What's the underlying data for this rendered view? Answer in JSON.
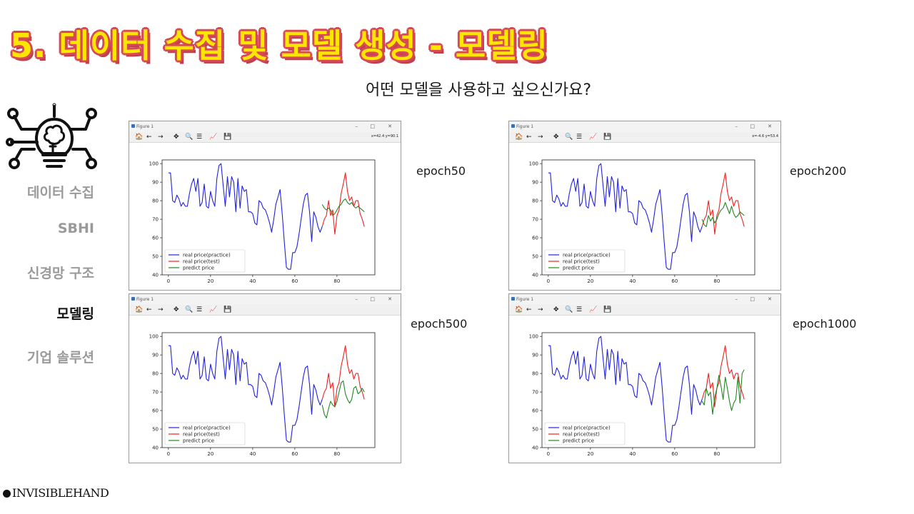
{
  "slide": {
    "title": "5. 데이터 수집 및 모델 생성 - 모델링",
    "subtitle": "어떤 모델을 사용하고 싶으신가요?",
    "brand": "INVISIBLEHAND"
  },
  "nav": {
    "items": [
      {
        "label": "데이터 수집",
        "active": false
      },
      {
        "label": "SBHI",
        "active": false
      },
      {
        "label": "신경망 구조",
        "active": false
      },
      {
        "label": "모델링",
        "active": true
      },
      {
        "label": "기업 솔루션",
        "active": false
      }
    ]
  },
  "figures": [
    {
      "window_title": "Figure 1",
      "epoch_label": "epoch50",
      "coords": "x=42.4 y=90.1"
    },
    {
      "window_title": "Figure 1",
      "epoch_label": "epoch200",
      "coords": "x=-4.6 y=53.4"
    },
    {
      "window_title": "Figure 1",
      "epoch_label": "epoch500",
      "coords": ""
    },
    {
      "window_title": "Figure 1",
      "epoch_label": "epoch1000",
      "coords": ""
    }
  ],
  "window_controls": {
    "minimize": "–",
    "maximize": "□",
    "close": "✕"
  },
  "toolbar_icons": [
    "home-icon",
    "back-arrow-icon",
    "forward-arrow-icon",
    "pan-icon",
    "zoom-icon",
    "configure-subplots-icon",
    "edit-axis-icon",
    "save-icon"
  ],
  "colors": {
    "practice": "#2222dd",
    "test": "#ee2222",
    "predict": "#228822",
    "title_fill": "#ffe600",
    "title_outline": "#d64a57"
  },
  "chart_data": [
    {
      "type": "line",
      "xlim": [
        -3,
        98
      ],
      "ylim": [
        40,
        102
      ],
      "xticks": [
        0,
        20,
        40,
        60,
        80
      ],
      "yticks": [
        40,
        50,
        60,
        70,
        80,
        90,
        100
      ],
      "legend_position": "lower-left",
      "series": [
        {
          "name": "real price(practice)",
          "x_start": 0,
          "values": [
            95,
            95,
            80,
            79,
            83,
            81,
            77,
            79,
            77,
            77,
            84,
            89,
            92,
            85,
            92,
            77,
            79,
            89,
            77,
            76,
            85,
            80,
            77,
            92,
            99,
            100,
            88,
            77,
            93,
            82,
            93,
            90,
            74,
            92,
            76,
            88,
            85,
            86,
            74,
            74,
            73,
            68,
            67,
            80,
            79,
            76,
            75,
            72,
            68,
            63,
            70,
            78,
            82,
            86,
            73,
            58,
            44,
            43,
            43,
            52,
            52,
            55,
            62,
            70,
            78,
            83,
            84,
            74,
            58,
            74,
            71,
            66,
            63,
            66
          ]
        },
        {
          "name": "real price(test)",
          "x_start": 73,
          "values": [
            66,
            70,
            72,
            80,
            72,
            75,
            62,
            72,
            75,
            84,
            89,
            95,
            85,
            80,
            82,
            77,
            80,
            80,
            73,
            70,
            66
          ]
        },
        {
          "name": "predict price",
          "x_start": 73,
          "values": [
            78,
            76,
            75,
            76,
            75,
            72,
            73,
            75,
            77,
            78,
            80,
            81,
            79,
            78,
            79,
            77,
            76,
            77,
            76,
            75,
            74
          ]
        }
      ]
    },
    {
      "type": "line",
      "xlim": [
        -3,
        98
      ],
      "ylim": [
        40,
        102
      ],
      "xticks": [
        0,
        20,
        40,
        60,
        80
      ],
      "yticks": [
        40,
        50,
        60,
        70,
        80,
        90,
        100
      ],
      "legend_position": "lower-left",
      "series": [
        {
          "name": "real price(practice)",
          "x_start": 0,
          "values": [
            95,
            95,
            80,
            79,
            83,
            81,
            77,
            79,
            77,
            77,
            84,
            89,
            92,
            85,
            92,
            77,
            79,
            89,
            77,
            76,
            85,
            80,
            77,
            92,
            99,
            100,
            88,
            77,
            93,
            82,
            93,
            90,
            74,
            92,
            76,
            88,
            85,
            86,
            74,
            74,
            73,
            68,
            67,
            80,
            79,
            76,
            75,
            72,
            68,
            63,
            70,
            78,
            82,
            86,
            73,
            58,
            44,
            43,
            43,
            52,
            52,
            55,
            62,
            70,
            78,
            83,
            84,
            74,
            58,
            74,
            71,
            66,
            63,
            66
          ]
        },
        {
          "name": "real price(test)",
          "x_start": 73,
          "values": [
            66,
            70,
            72,
            80,
            72,
            75,
            62,
            72,
            75,
            84,
            89,
            95,
            85,
            80,
            82,
            77,
            80,
            80,
            73,
            70,
            66
          ]
        },
        {
          "name": "predict price",
          "x_start": 73,
          "values": [
            70,
            67,
            66,
            72,
            69,
            71,
            68,
            70,
            73,
            75,
            76,
            79,
            76,
            73,
            77,
            73,
            71,
            72,
            74,
            73,
            72
          ]
        }
      ]
    },
    {
      "type": "line",
      "xlim": [
        -3,
        98
      ],
      "ylim": [
        40,
        102
      ],
      "xticks": [
        0,
        20,
        40,
        60,
        80
      ],
      "yticks": [
        40,
        50,
        60,
        70,
        80,
        90,
        100
      ],
      "legend_position": "lower-left",
      "series": [
        {
          "name": "real price(practice)",
          "x_start": 0,
          "values": [
            95,
            95,
            80,
            79,
            83,
            81,
            77,
            79,
            77,
            77,
            84,
            89,
            92,
            85,
            92,
            77,
            79,
            89,
            77,
            76,
            85,
            80,
            77,
            92,
            99,
            100,
            88,
            77,
            93,
            82,
            93,
            90,
            74,
            92,
            76,
            88,
            85,
            86,
            74,
            74,
            73,
            68,
            67,
            80,
            79,
            76,
            75,
            72,
            68,
            63,
            70,
            78,
            82,
            86,
            73,
            58,
            44,
            43,
            43,
            52,
            52,
            55,
            62,
            70,
            78,
            83,
            84,
            74,
            58,
            74,
            71,
            66,
            63,
            66
          ]
        },
        {
          "name": "real price(test)",
          "x_start": 73,
          "values": [
            66,
            70,
            72,
            80,
            72,
            75,
            62,
            72,
            75,
            84,
            89,
            95,
            85,
            80,
            82,
            77,
            80,
            80,
            73,
            70,
            66
          ]
        },
        {
          "name": "predict price",
          "x_start": 73,
          "values": [
            63,
            58,
            56,
            61,
            65,
            63,
            62,
            65,
            70,
            75,
            76,
            69,
            66,
            64,
            66,
            72,
            73,
            69,
            70,
            72,
            70
          ]
        }
      ]
    },
    {
      "type": "line",
      "xlim": [
        -3,
        98
      ],
      "ylim": [
        40,
        102
      ],
      "xticks": [
        0,
        20,
        40,
        60,
        80
      ],
      "yticks": [
        40,
        50,
        60,
        70,
        80,
        90,
        100
      ],
      "legend_position": "lower-left",
      "series": [
        {
          "name": "real price(practice)",
          "x_start": 0,
          "values": [
            95,
            95,
            80,
            79,
            83,
            81,
            77,
            79,
            77,
            77,
            84,
            89,
            92,
            85,
            92,
            77,
            79,
            89,
            77,
            76,
            85,
            80,
            77,
            92,
            99,
            100,
            88,
            77,
            93,
            82,
            93,
            90,
            74,
            92,
            76,
            88,
            85,
            86,
            74,
            74,
            73,
            68,
            67,
            80,
            79,
            76,
            75,
            72,
            68,
            63,
            70,
            78,
            82,
            86,
            73,
            58,
            44,
            43,
            43,
            52,
            52,
            55,
            62,
            70,
            78,
            83,
            84,
            74,
            58,
            74,
            71,
            66,
            63,
            66
          ]
        },
        {
          "name": "real price(test)",
          "x_start": 73,
          "values": [
            66,
            70,
            72,
            80,
            72,
            75,
            62,
            72,
            75,
            84,
            89,
            95,
            85,
            80,
            82,
            77,
            80,
            80,
            73,
            70,
            66
          ]
        },
        {
          "name": "predict price",
          "x_start": 73,
          "values": [
            65,
            63,
            72,
            68,
            70,
            58,
            67,
            72,
            79,
            73,
            66,
            78,
            72,
            65,
            60,
            64,
            66,
            78,
            64,
            80,
            82
          ]
        }
      ]
    }
  ]
}
